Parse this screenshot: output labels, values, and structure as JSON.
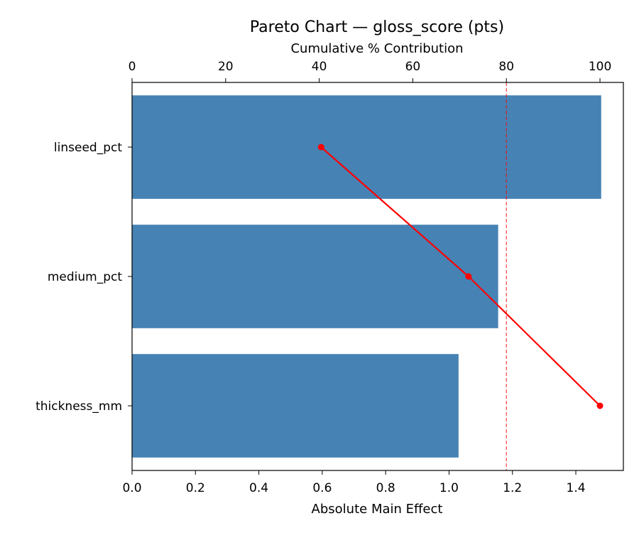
{
  "chart_data": {
    "type": "bar",
    "orientation": "horizontal",
    "title": "Pareto Chart — gloss_score (pts)",
    "xlabel": "Absolute Main Effect",
    "x2label": "Cumulative % Contribution",
    "categories": [
      "linseed_pct",
      "medium_pct",
      "thickness_mm"
    ],
    "values": [
      1.48,
      1.155,
      1.03
    ],
    "xlim": [
      0,
      1.55
    ],
    "xticks": [
      "0.0",
      "0.2",
      "0.4",
      "0.6",
      "0.8",
      "1.0",
      "1.2",
      "1.4"
    ],
    "cumulative": [
      40.4,
      71.9,
      100
    ],
    "x2lim": [
      0,
      105
    ],
    "x2ticks": [
      "0",
      "20",
      "40",
      "60",
      "80",
      "100"
    ],
    "threshold": 80,
    "colors": {
      "bar": "#4682b4",
      "cumulative_line": "#ff0000",
      "threshold_line": "#ff0000"
    },
    "grid": false,
    "legend": "none"
  }
}
